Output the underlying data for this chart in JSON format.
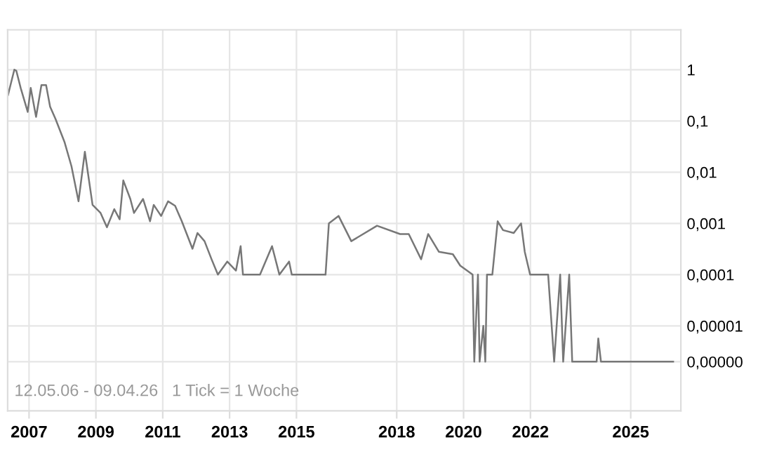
{
  "chart_data": {
    "type": "line",
    "x": [
      2006.37,
      2006.56,
      2006.62,
      2006.75,
      2006.96,
      2007.05,
      2007.21,
      2007.37,
      2007.51,
      2007.63,
      2007.79,
      2008.06,
      2008.27,
      2008.48,
      2008.67,
      2008.9,
      2009.14,
      2009.33,
      2009.55,
      2009.71,
      2009.82,
      2010.03,
      2010.14,
      2010.41,
      2010.62,
      2010.73,
      2010.95,
      2011.16,
      2011.37,
      2011.57,
      2011.89,
      2012.04,
      2012.25,
      2012.46,
      2012.65,
      2012.93,
      2013.19,
      2013.33,
      2013.4,
      2013.91,
      2014.27,
      2014.49,
      2014.78,
      2014.86,
      2015.87,
      2015.97,
      2016.26,
      2016.64,
      2017.41,
      2018.1,
      2018.36,
      2018.73,
      2018.94,
      2019.26,
      2019.68,
      2019.9,
      2020.27,
      2020.32,
      2020.43,
      2020.48,
      2020.59,
      2020.65,
      2020.7,
      2020.86,
      2021.02,
      2021.18,
      2021.5,
      2021.72,
      2021.83,
      2021.99,
      2022.53,
      2022.71,
      2022.89,
      2022.98,
      2023.16,
      2023.25,
      2023.98,
      2024.03,
      2024.11,
      2026.27
    ],
    "series": [
      {
        "color": "#777777",
        "values": [
          0.32,
          1.0,
          0.95,
          0.44,
          0.15,
          0.44,
          0.12,
          0.5,
          0.5,
          0.19,
          0.11,
          0.039,
          0.013,
          0.0027,
          0.025,
          0.0023,
          0.0016,
          0.00084,
          0.0019,
          0.0012,
          0.0069,
          0.003,
          0.0016,
          0.003,
          0.0011,
          0.0023,
          0.0014,
          0.0027,
          0.0022,
          0.0011,
          0.00032,
          0.00065,
          0.00045,
          0.0002,
          0.0001,
          0.00018,
          0.00012,
          0.00036,
          0.0001,
          0.0001,
          0.00036,
          0.0001,
          0.00018,
          0.0001,
          0.0001,
          0.001,
          0.0014,
          0.00045,
          0.0009,
          0.00062,
          0.00062,
          0.0002,
          0.00062,
          0.00028,
          0.00025,
          0.00015,
          0.0001,
          2e-06,
          0.0001,
          2e-06,
          1e-05,
          2e-06,
          0.0001,
          0.0001,
          0.0011,
          0.00074,
          0.00065,
          0.001,
          0.00028,
          0.0001,
          0.0001,
          2e-06,
          0.0001,
          2e-06,
          0.0001,
          2e-06,
          2e-06,
          5.7e-06,
          2e-06,
          2e-06
        ]
      }
    ],
    "log": "y",
    "xlim": [
      2006.36,
      2026.5
    ],
    "xticks": [
      2007,
      2009,
      2011,
      2013,
      2015,
      2018,
      2020,
      2022,
      2025
    ],
    "ylim": [
      2.2e-07,
      6
    ],
    "yticks": [
      1,
      {
        "value": 0.1,
        "label": "0,1"
      },
      {
        "value": 0.01,
        "label": "0,01"
      },
      {
        "value": 0.001,
        "label": "0,001"
      },
      {
        "value": 0.0001,
        "label": "0,0001"
      },
      {
        "value": 1e-05,
        "label": "0,00001"
      },
      {
        "value": 2e-06,
        "label": "0,00000"
      }
    ],
    "grid": true,
    "marker": "none",
    "line_style": "solid",
    "annotations": [
      "12.05.06 - 09.04.26   1 Tick = 1 Woche"
    ]
  }
}
